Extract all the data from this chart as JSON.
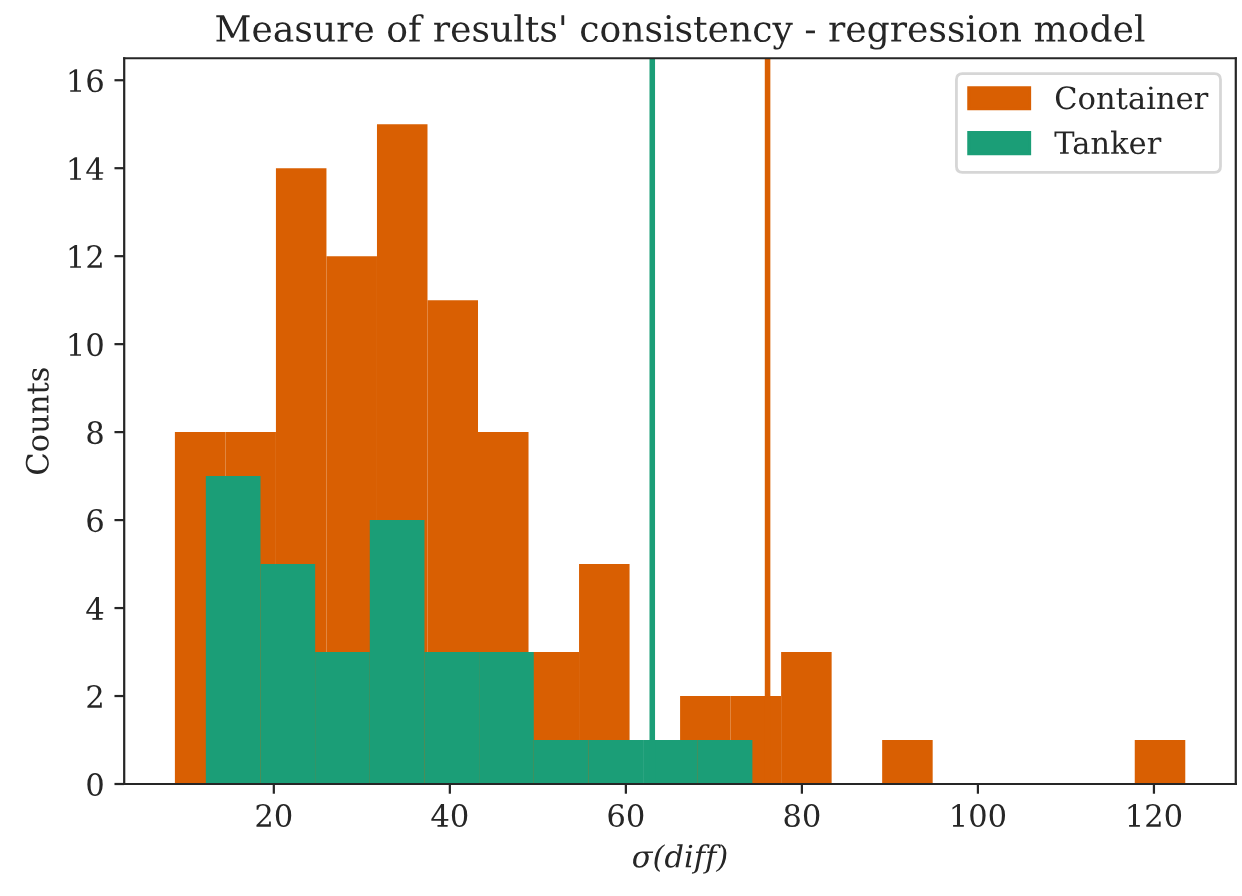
{
  "chart_data": {
    "type": "bar",
    "title": "Measure of results' consistency - regression model",
    "xlabel": "σ(diff)",
    "ylabel": "Counts",
    "series": [
      {
        "name": "Container",
        "color": "#d95f02",
        "x": [
          11.63,
          17.37,
          23.11,
          28.85,
          34.59,
          40.33,
          46.07,
          51.81,
          57.55,
          63.29,
          69.03,
          74.77,
          80.51,
          86.25,
          91.99,
          97.73,
          103.47,
          109.21,
          114.95,
          120.69
        ],
        "values": [
          8,
          8,
          14,
          12,
          15,
          11,
          8,
          3,
          5,
          0,
          2,
          2,
          3,
          0,
          1,
          0,
          0,
          0,
          0,
          1
        ]
      },
      {
        "name": "Tanker",
        "color": "#1b9e77",
        "x": [
          15.38,
          21.59,
          27.8,
          34.01,
          40.22,
          46.43,
          52.64,
          58.85,
          65.06,
          71.27
        ],
        "values": [
          7,
          5,
          3,
          6,
          3,
          3,
          1,
          1,
          1,
          1
        ]
      }
    ],
    "ref_lines": [
      {
        "axis": "x",
        "value": 63.0,
        "color": "#1b9e77"
      },
      {
        "axis": "x",
        "value": 76.1,
        "color": "#d95f02"
      }
    ],
    "xlim": [
      3.0,
      129.3
    ],
    "ylim": [
      0,
      16.5
    ],
    "xticks": [
      20,
      40,
      60,
      80,
      100,
      120
    ],
    "yticks": [
      0,
      2,
      4,
      6,
      8,
      10,
      12,
      14,
      16
    ],
    "grid": false,
    "legend": "top right"
  }
}
